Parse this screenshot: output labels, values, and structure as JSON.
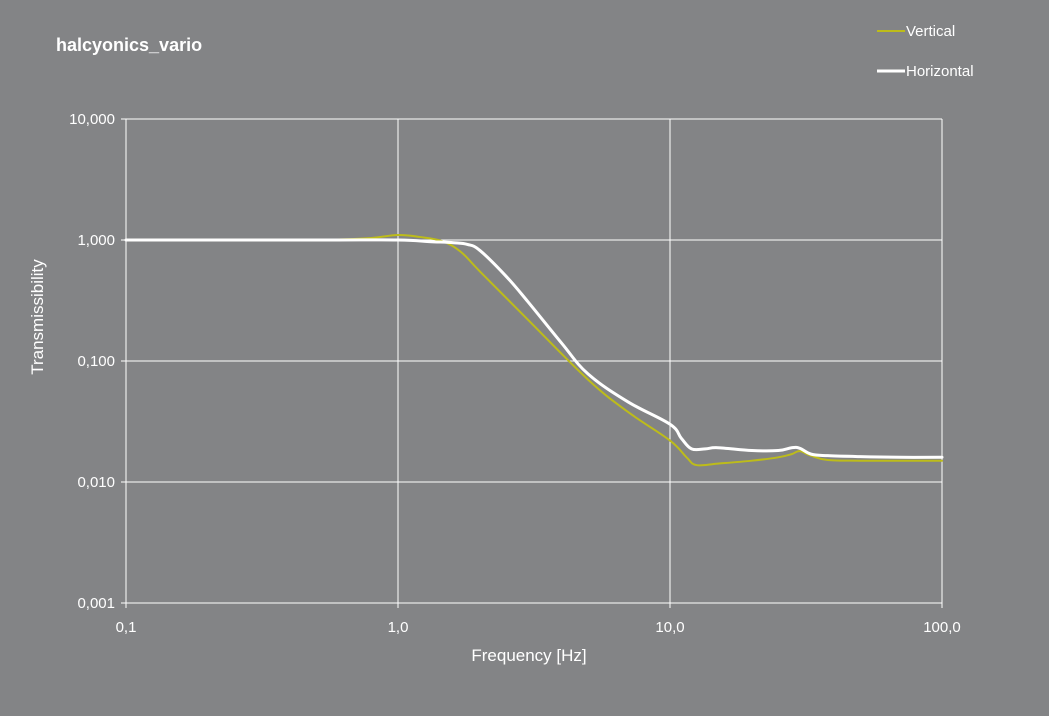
{
  "chart_data": {
    "type": "line",
    "title": "halcyonics_vario",
    "xlabel": "Frequency  [Hz]",
    "ylabel": "Transmissibility",
    "x_scale": "log",
    "y_scale": "log",
    "xlim": [
      0.1,
      100
    ],
    "ylim": [
      0.001,
      10
    ],
    "x_ticks": [
      {
        "value": 0.1,
        "label": "0,1"
      },
      {
        "value": 1,
        "label": "1,0"
      },
      {
        "value": 10,
        "label": "10,0"
      },
      {
        "value": 100,
        "label": "100,0"
      }
    ],
    "y_ticks": [
      {
        "value": 10,
        "label": "10,000"
      },
      {
        "value": 1,
        "label": "1,000"
      },
      {
        "value": 0.1,
        "label": "0,100"
      },
      {
        "value": 0.01,
        "label": "0,010"
      },
      {
        "value": 0.001,
        "label": "0,001"
      }
    ],
    "grid": true,
    "legend_position": "top-right",
    "series": [
      {
        "name": "Vertical",
        "color": "#bdbc1a",
        "x": [
          0.1,
          0.3,
          0.6,
          0.8,
          1.0,
          1.2,
          1.45,
          1.7,
          2.0,
          3.0,
          5.0,
          7.0,
          10.0,
          11.5,
          12.5,
          15.0,
          20.0,
          25.0,
          28.0,
          30.0,
          33.0,
          38.0,
          50.0,
          70.0,
          100.0
        ],
        "y": [
          1.0,
          1.0,
          1.01,
          1.04,
          1.1,
          1.06,
          0.98,
          0.8,
          0.55,
          0.22,
          0.07,
          0.038,
          0.022,
          0.016,
          0.0138,
          0.0142,
          0.015,
          0.016,
          0.017,
          0.018,
          0.0165,
          0.0152,
          0.015,
          0.015,
          0.015
        ]
      },
      {
        "name": "Horizontal",
        "color": "#ffffff",
        "x": [
          0.1,
          0.5,
          1.0,
          1.3,
          1.6,
          1.8,
          2.0,
          2.5,
          3.0,
          4.0,
          5.0,
          7.0,
          10.0,
          11.0,
          12.0,
          13.5,
          15.0,
          20.0,
          25.0,
          28.0,
          30.0,
          33.0,
          38.0,
          50.0,
          70.0,
          100.0
        ],
        "y": [
          1.0,
          1.0,
          1.0,
          0.97,
          0.95,
          0.92,
          0.82,
          0.5,
          0.31,
          0.14,
          0.078,
          0.046,
          0.03,
          0.023,
          0.0188,
          0.0188,
          0.0192,
          0.0182,
          0.0182,
          0.0192,
          0.019,
          0.017,
          0.0165,
          0.0162,
          0.016,
          0.016
        ]
      }
    ]
  }
}
